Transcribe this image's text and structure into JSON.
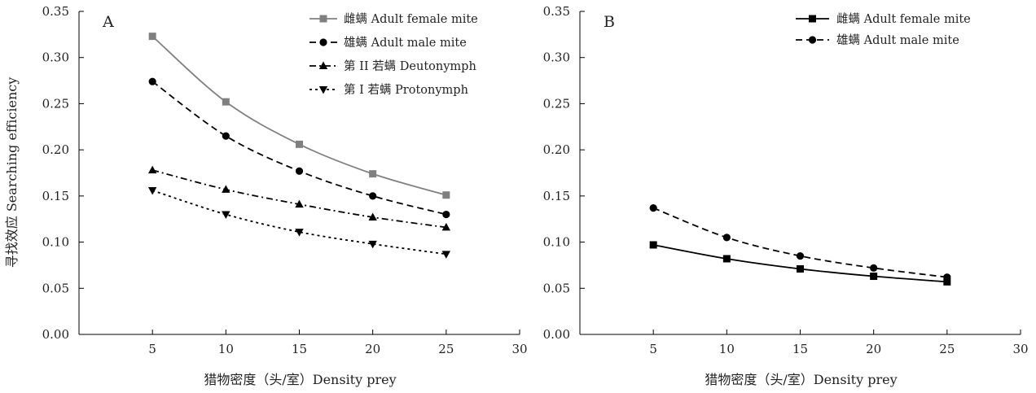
{
  "figure": {
    "ylabel": "寻找效应 Searching efficiency"
  },
  "chart_data": [
    {
      "type": "line",
      "panel_label": "A",
      "xlabel": "猎物密度（头/室）Density prey",
      "ylabel": "寻找效应 Searching efficiency",
      "xlim": [
        0,
        30
      ],
      "ylim": [
        0,
        0.35
      ],
      "xticks": [
        "5",
        "10",
        "15",
        "20",
        "25",
        "30"
      ],
      "yticks": [
        "0.00",
        "0.05",
        "0.10",
        "0.15",
        "0.20",
        "0.25",
        "0.30",
        "0.35"
      ],
      "grid": false,
      "legend_position": "top-right",
      "x": [
        5,
        10,
        15,
        20,
        25
      ],
      "series": [
        {
          "name": "雌螨 Adult female mite",
          "values": [
            0.323,
            0.252,
            0.206,
            0.174,
            0.151
          ],
          "color": "#808080",
          "dash": "solid",
          "marker": "square"
        },
        {
          "name": "雄螨 Adult male mite",
          "values": [
            0.274,
            0.215,
            0.177,
            0.15,
            0.13
          ],
          "color": "#000000",
          "dash": "dashed",
          "marker": "circle"
        },
        {
          "name": "第 II 若螨 Deutonymph",
          "values": [
            0.178,
            0.157,
            0.141,
            0.127,
            0.116
          ],
          "color": "#000000",
          "dash": "dashdot",
          "marker": "triangle-up"
        },
        {
          "name": "第 I 若螨 Protonymph",
          "values": [
            0.156,
            0.13,
            0.111,
            0.098,
            0.087
          ],
          "color": "#000000",
          "dash": "dotted",
          "marker": "triangle-down"
        }
      ]
    },
    {
      "type": "line",
      "panel_label": "B",
      "xlabel": "猎物密度（头/室）Density prey",
      "xlim": [
        0,
        30
      ],
      "ylim": [
        0,
        0.35
      ],
      "xticks": [
        "5",
        "10",
        "15",
        "20",
        "25",
        "30"
      ],
      "yticks": [
        "0.00",
        "0.05",
        "0.10",
        "0.15",
        "0.20",
        "0.25",
        "0.30",
        "0.35"
      ],
      "grid": false,
      "legend_position": "top-right",
      "x": [
        5,
        10,
        15,
        20,
        25
      ],
      "series": [
        {
          "name": "雌螨 Adult female mite",
          "values": [
            0.097,
            0.082,
            0.071,
            0.063,
            0.057
          ],
          "color": "#000000",
          "dash": "solid",
          "marker": "square"
        },
        {
          "name": "雄螨 Adult male mite",
          "values": [
            0.137,
            0.105,
            0.085,
            0.072,
            0.062
          ],
          "color": "#000000",
          "dash": "dashed",
          "marker": "circle"
        }
      ]
    }
  ]
}
